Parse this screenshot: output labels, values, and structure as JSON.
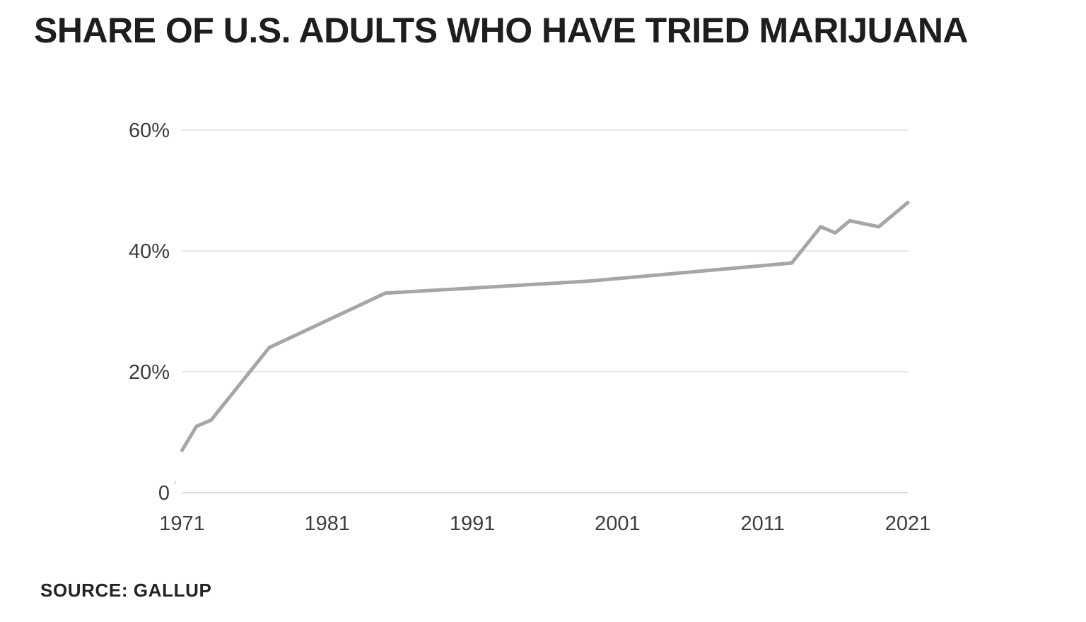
{
  "title": "SHARE OF U.S. ADULTS WHO HAVE TRIED MARIJUANA",
  "source": "SOURCE: GALLUP",
  "colors": {
    "background": "#ffffff",
    "title_text": "#1e1e1e",
    "source_text": "#232323"
  },
  "chart_data": {
    "type": "line",
    "title": "Share of U.S. adults who have tried marijuana",
    "source": "Gallup",
    "unit": "%",
    "x": [
      1971,
      1972,
      1973,
      1977,
      1985,
      1999,
      2013,
      2015,
      2016,
      2017,
      2019,
      2021
    ],
    "y": [
      7,
      11,
      12,
      24,
      33,
      35,
      38,
      44,
      43,
      45,
      44,
      48
    ],
    "series_name": "Share who have tried marijuana",
    "xlabel": "",
    "ylabel": "",
    "xlim": [
      1971,
      2021
    ],
    "ylim": [
      0,
      60
    ],
    "x_ticks": [
      1971,
      1981,
      1991,
      2001,
      2011,
      2021
    ],
    "y_ticks": [
      {
        "value": 60,
        "label": "60%"
      },
      {
        "value": 40,
        "label": "40%"
      },
      {
        "value": 20,
        "label": "20%"
      },
      {
        "value": 0,
        "label": "0"
      }
    ],
    "zero_label_artifact": "'",
    "grid": "horizontal-only",
    "legend": "none",
    "line_color": "#a6a6a6",
    "line_width": 5,
    "gridline_color": "#dedede",
    "zero_line_color": "#cbcbcb",
    "tick_label_color": "#3d3d3d",
    "tick_font_size": 29
  }
}
